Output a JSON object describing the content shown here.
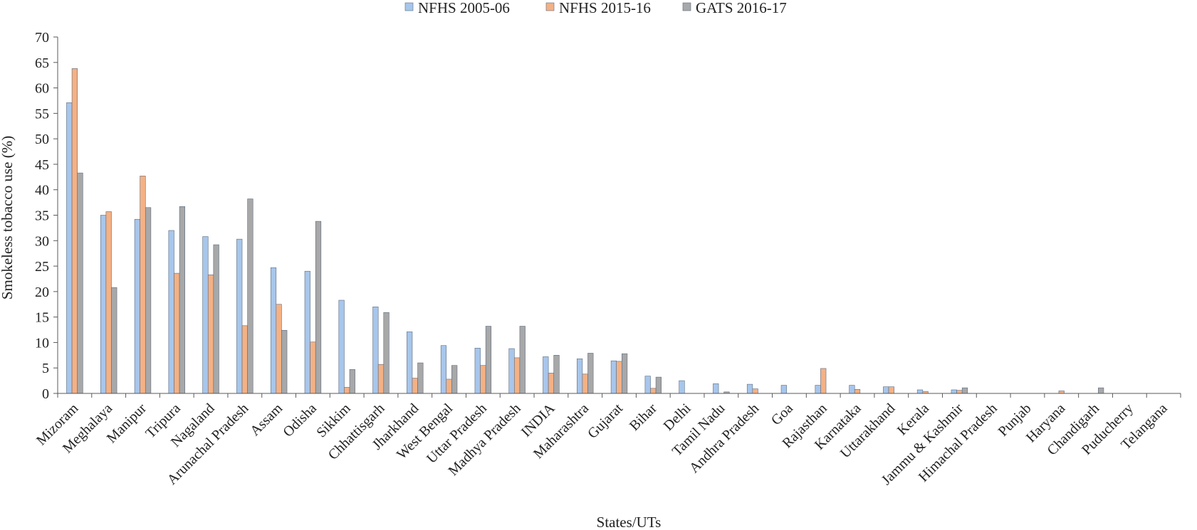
{
  "chart_data": {
    "type": "bar",
    "title": "",
    "xlabel": "States/UTs",
    "ylabel": "Smokeless tobacco use (%)",
    "ylim": [
      0,
      70
    ],
    "yticks": [
      0,
      5,
      10,
      15,
      20,
      25,
      30,
      35,
      40,
      45,
      50,
      55,
      60,
      65,
      70
    ],
    "grid": false,
    "legend": "top-center",
    "categories": [
      "Mizoram",
      "Meghalaya",
      "Manipur",
      "Tripura",
      "Nagaland",
      "Arunachal Pradesh",
      "Assam",
      "Odisha",
      "Sikkim",
      "Chhattisgarh",
      "Jharkhand",
      "West Bengal",
      "Uttar Pradesh",
      "Madhya Pradesh",
      "INDIA",
      "Maharashtra",
      "Gujarat",
      "Bihar",
      "Delhi",
      "Tamil Nadu",
      "Andhra Pradesh",
      "Goa",
      "Rajasthan",
      "Karnataka",
      "Uttarakhand",
      "Kerala",
      "Jammu & Kashmir",
      "Himachal Pradesh",
      "Punjab",
      "Haryana",
      "Chandigarh",
      "Puducherry",
      "Telangana"
    ],
    "series": [
      {
        "name": "NFHS 2005-06",
        "color": "#a7c6ec",
        "values": [
          57.1,
          35.0,
          34.2,
          32.0,
          30.8,
          30.3,
          24.7,
          24.0,
          18.3,
          17.0,
          12.1,
          9.4,
          8.9,
          8.8,
          7.2,
          6.8,
          6.4,
          3.4,
          2.5,
          1.9,
          1.8,
          1.6,
          1.6,
          1.6,
          1.3,
          0.7,
          0.7,
          0,
          0,
          0,
          0,
          0,
          0
        ]
      },
      {
        "name": "NFHS 2015-16",
        "color": "#f4b184",
        "values": [
          63.8,
          35.7,
          42.7,
          23.6,
          23.3,
          13.3,
          17.5,
          10.1,
          1.2,
          5.7,
          3.0,
          2.8,
          5.5,
          7.0,
          4.0,
          3.8,
          6.3,
          1.0,
          0,
          0,
          0.9,
          0,
          4.9,
          0.8,
          1.3,
          0.4,
          0.6,
          0,
          0,
          0.5,
          0,
          0,
          0
        ]
      },
      {
        "name": "GATS 2016-17",
        "color": "#a8a8a8",
        "values": [
          43.3,
          20.8,
          36.5,
          36.7,
          29.2,
          38.2,
          12.4,
          33.8,
          4.7,
          15.9,
          6.0,
          5.5,
          13.2,
          13.2,
          7.5,
          7.9,
          7.8,
          3.2,
          0,
          0.3,
          0,
          0,
          0,
          0,
          0,
          0,
          1.1,
          0,
          0,
          0,
          1.1,
          0,
          0
        ]
      }
    ]
  }
}
